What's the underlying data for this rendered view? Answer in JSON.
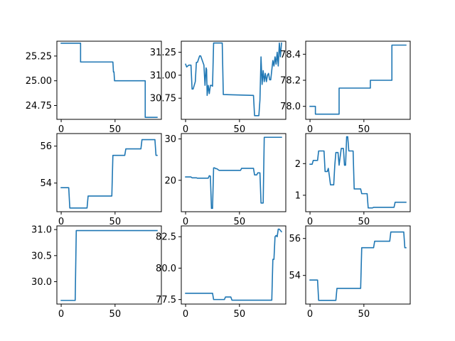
{
  "figure": {
    "background": "#ffffff",
    "line_color": "#1f77b4"
  },
  "chart_data": [
    {
      "type": "line",
      "title": "",
      "xlabel": "",
      "ylabel": "",
      "xlim": [
        -4,
        93
      ],
      "ylim": [
        24.61,
        25.4
      ],
      "xticks": [
        0,
        50
      ],
      "yticks": [
        24.75,
        25.0,
        25.25
      ],
      "xtick_labels": [
        "0",
        "50"
      ],
      "ytick_labels": [
        "24.75",
        "25.00",
        "25.25"
      ],
      "grid": false,
      "series": [
        {
          "color": "#1f77b4",
          "x": [
            0,
            18,
            18,
            48,
            48.5,
            49,
            49.5,
            78,
            78,
            89
          ],
          "y": [
            25.38,
            25.38,
            25.19,
            25.19,
            25.09,
            25.09,
            25.0,
            25.0,
            24.63,
            24.63
          ]
        }
      ]
    },
    {
      "type": "line",
      "title": "",
      "xlabel": "",
      "ylabel": "",
      "xlim": [
        -4,
        93
      ],
      "ylim": [
        30.52,
        31.37
      ],
      "xticks": [
        0,
        50
      ],
      "yticks": [
        30.75,
        31.0,
        31.25
      ],
      "xtick_labels": [
        "0",
        "50"
      ],
      "ytick_labels": [
        "30.75",
        "31.00",
        "31.25"
      ],
      "grid": false,
      "series": [
        {
          "color": "#1f77b4",
          "x": [
            0,
            1,
            2,
            3,
            5,
            6,
            7,
            9,
            10,
            11,
            13,
            14,
            17,
            18,
            19,
            19.5,
            20,
            21,
            22,
            23,
            24,
            25,
            26,
            27,
            28,
            34,
            35,
            63,
            64,
            68,
            69,
            70,
            71,
            72,
            73,
            74,
            75,
            76,
            77,
            78,
            79,
            81,
            82,
            83,
            84,
            85,
            86,
            87,
            88,
            89
          ],
          "y": [
            31.12,
            31.09,
            31.1,
            31.11,
            31.11,
            30.85,
            30.85,
            30.93,
            31.14,
            31.14,
            31.21,
            31.21,
            31.11,
            30.89,
            31.08,
            31.06,
            30.78,
            30.89,
            30.8,
            30.89,
            30.89,
            30.88,
            31.35,
            31.35,
            31.35,
            31.35,
            30.79,
            30.78,
            30.56,
            30.56,
            30.73,
            31.2,
            30.9,
            31.05,
            30.93,
            31.02,
            30.93,
            31.0,
            31.02,
            30.95,
            30.95,
            31.16,
            31.1,
            31.2,
            31.12,
            31.25,
            31.1,
            31.35,
            31.2,
            31.35
          ]
        }
      ]
    },
    {
      "type": "line",
      "title": "",
      "xlabel": "",
      "ylabel": "",
      "xlim": [
        -4,
        93
      ],
      "ylim": [
        77.9,
        78.5
      ],
      "xticks": [
        0,
        50
      ],
      "yticks": [
        78.0,
        78.2,
        78.4
      ],
      "xtick_labels": [
        "0",
        "50"
      ],
      "ytick_labels": [
        "78.0",
        "78.2",
        "78.4"
      ],
      "grid": false,
      "series": [
        {
          "color": "#1f77b4",
          "x": [
            0,
            5,
            5,
            27,
            27,
            56,
            56,
            76,
            76,
            89
          ],
          "y": [
            78.0,
            78.0,
            77.94,
            77.94,
            78.14,
            78.14,
            78.2,
            78.2,
            78.47,
            78.47
          ]
        }
      ]
    },
    {
      "type": "line",
      "title": "",
      "xlabel": "",
      "ylabel": "",
      "xlim": [
        -4,
        93
      ],
      "ylim": [
        52.45,
        56.68
      ],
      "xticks": [
        0,
        50
      ],
      "yticks": [
        54,
        56
      ],
      "xtick_labels": [
        "0",
        "50"
      ],
      "ytick_labels": [
        "54",
        "56"
      ],
      "grid": false,
      "series": [
        {
          "color": "#1f77b4",
          "x": [
            0,
            7,
            8,
            24,
            25,
            47,
            48,
            59,
            60,
            74,
            75,
            87,
            88,
            89
          ],
          "y": [
            53.75,
            53.75,
            52.65,
            52.65,
            53.3,
            53.3,
            55.5,
            55.5,
            55.85,
            55.85,
            56.35,
            56.35,
            55.5,
            55.5
          ]
        }
      ]
    },
    {
      "type": "line",
      "title": "",
      "xlabel": "",
      "ylabel": "",
      "xlim": [
        -4,
        93
      ],
      "ylim": [
        12.4,
        31.3
      ],
      "xticks": [
        0,
        50
      ],
      "yticks": [
        20,
        30
      ],
      "xtick_labels": [
        "0",
        "50"
      ],
      "ytick_labels": [
        "20",
        "30"
      ],
      "grid": false,
      "series": [
        {
          "color": "#1f77b4",
          "x": [
            0,
            5,
            6,
            10,
            11,
            21,
            22,
            23,
            24,
            25,
            26,
            27,
            28,
            29,
            31,
            32,
            51,
            52,
            63,
            64,
            66,
            67,
            69,
            70,
            72,
            73,
            89
          ],
          "y": [
            20.8,
            20.8,
            20.6,
            20.6,
            20.5,
            20.5,
            21.1,
            21.0,
            13.2,
            13.2,
            23.0,
            23.0,
            22.8,
            22.8,
            22.4,
            22.4,
            22.4,
            22.9,
            22.9,
            21.3,
            21.3,
            21.8,
            21.8,
            14.5,
            14.5,
            30.4,
            30.4
          ]
        }
      ]
    },
    {
      "type": "line",
      "title": "",
      "xlabel": "",
      "ylabel": "",
      "xlim": [
        -4,
        93
      ],
      "ylim": [
        0.48,
        2.95
      ],
      "xticks": [
        0,
        50
      ],
      "yticks": [
        1,
        2
      ],
      "xtick_labels": [
        "0",
        "50"
      ],
      "ytick_labels": [
        "1",
        "2"
      ],
      "grid": false,
      "series": [
        {
          "color": "#1f77b4",
          "x": [
            0,
            2,
            3,
            7,
            8,
            13,
            14,
            16,
            17,
            18,
            19,
            22,
            23,
            24,
            26,
            27,
            29,
            31,
            32,
            33,
            34,
            35,
            36,
            38,
            40,
            41,
            47,
            48,
            53,
            54,
            58,
            59,
            63,
            75,
            78,
            79,
            89
          ],
          "y": [
            1.98,
            1.98,
            2.1,
            2.1,
            2.4,
            2.4,
            1.75,
            1.75,
            1.85,
            1.6,
            1.33,
            1.33,
            1.95,
            2.35,
            2.35,
            1.95,
            2.48,
            2.48,
            1.95,
            1.95,
            2.85,
            2.85,
            2.4,
            2.4,
            2.4,
            1.2,
            1.2,
            1.05,
            1.05,
            0.6,
            0.6,
            0.62,
            0.62,
            0.62,
            0.62,
            0.78,
            0.78
          ]
        }
      ]
    },
    {
      "type": "line",
      "title": "",
      "xlabel": "",
      "ylabel": "",
      "xlim": [
        -4,
        93
      ],
      "ylim": [
        29.57,
        31.07
      ],
      "xticks": [
        0,
        50
      ],
      "yticks": [
        30.0,
        30.5,
        31.0
      ],
      "xtick_labels": [
        "0",
        "50"
      ],
      "ytick_labels": [
        "30.0",
        "30.5",
        "31.0"
      ],
      "grid": false,
      "series": [
        {
          "color": "#1f77b4",
          "x": [
            0,
            13,
            14,
            89
          ],
          "y": [
            29.64,
            29.64,
            30.98,
            30.98
          ]
        }
      ]
    },
    {
      "type": "line",
      "title": "",
      "xlabel": "",
      "ylabel": "",
      "xlim": [
        -4,
        93
      ],
      "ylim": [
        77.14,
        83.36
      ],
      "xticks": [
        0,
        50
      ],
      "yticks": [
        77.5,
        80.0,
        82.5
      ],
      "xtick_labels": [
        "0",
        "50"
      ],
      "ytick_labels": [
        "77.5",
        "80.0",
        "82.5"
      ],
      "grid": false,
      "series": [
        {
          "color": "#1f77b4",
          "x": [
            0,
            25,
            26,
            36,
            37,
            42,
            43,
            80,
            81,
            82,
            83,
            84,
            85,
            86,
            87,
            89
          ],
          "y": [
            78.0,
            78.0,
            77.5,
            77.5,
            77.7,
            77.7,
            77.45,
            77.45,
            80.7,
            80.7,
            82.5,
            82.6,
            82.5,
            83.1,
            83.1,
            82.9
          ]
        }
      ]
    },
    {
      "type": "line",
      "title": "",
      "xlabel": "",
      "ylabel": "",
      "xlim": [
        -4,
        93
      ],
      "ylim": [
        52.45,
        56.68
      ],
      "xticks": [
        0,
        50
      ],
      "yticks": [
        54,
        56
      ],
      "xtick_labels": [
        "0",
        "50"
      ],
      "ytick_labels": [
        "54",
        "56"
      ],
      "grid": false,
      "series": [
        {
          "color": "#1f77b4",
          "x": [
            0,
            7,
            8,
            24,
            25,
            47,
            48,
            59,
            60,
            74,
            75,
            87,
            88,
            89
          ],
          "y": [
            53.75,
            53.75,
            52.65,
            52.65,
            53.3,
            53.3,
            55.5,
            55.5,
            55.85,
            55.85,
            56.35,
            56.35,
            55.5,
            55.5
          ]
        }
      ]
    }
  ]
}
